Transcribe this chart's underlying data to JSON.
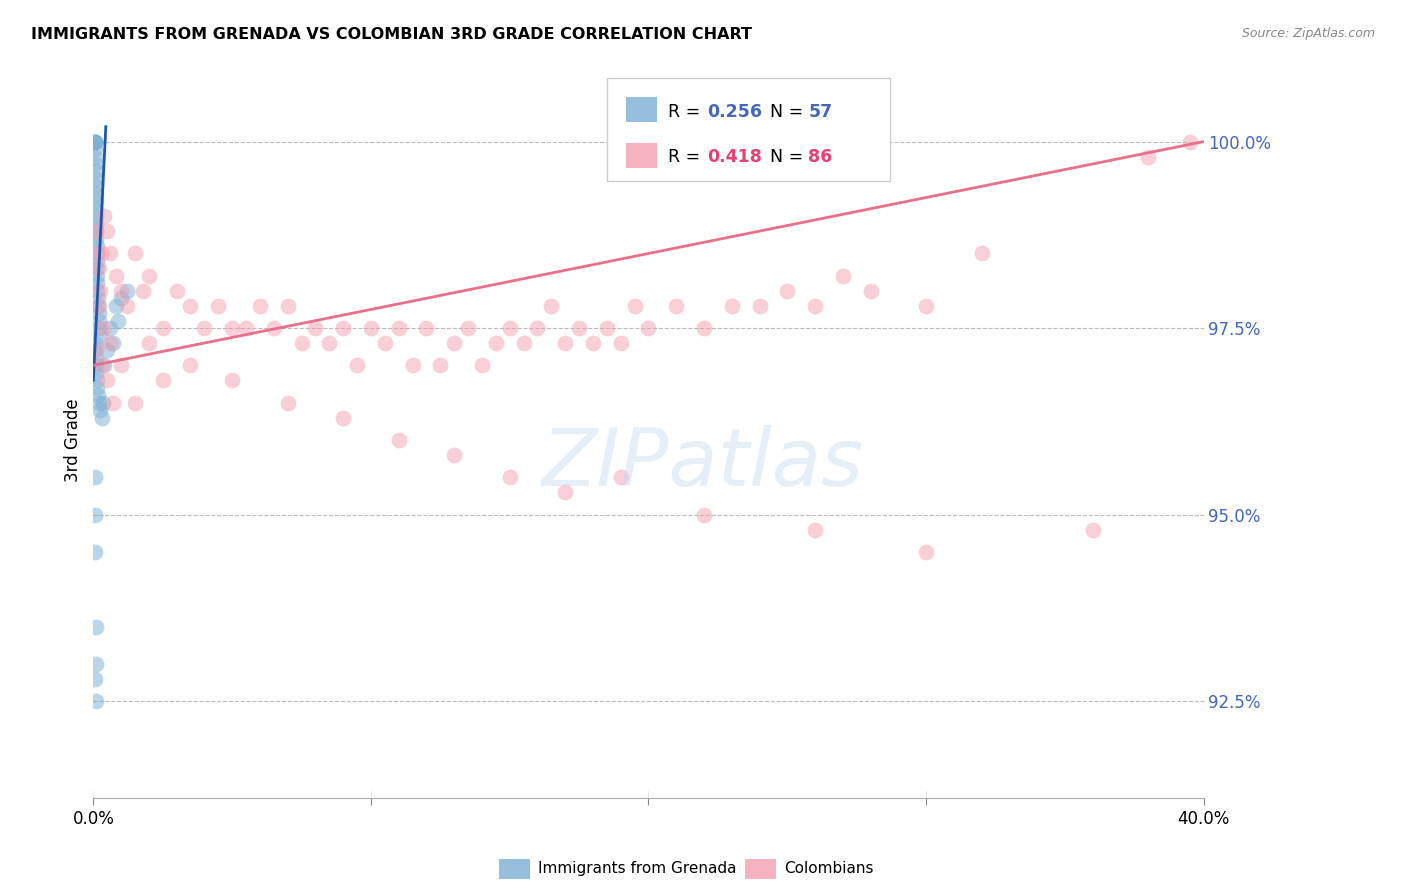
{
  "title": "IMMIGRANTS FROM GRENADA VS COLOMBIAN 3RD GRADE CORRELATION CHART",
  "source": "Source: ZipAtlas.com",
  "ylabel": "3rd Grade",
  "yticks": [
    92.5,
    95.0,
    97.5,
    100.0
  ],
  "ytick_labels": [
    "92.5%",
    "95.0%",
    "97.5%",
    "100.0%"
  ],
  "xmin": 0.0,
  "xmax": 40.0,
  "ymin": 91.2,
  "ymax": 100.8,
  "blue_R": 0.256,
  "blue_N": 57,
  "pink_R": 0.418,
  "pink_N": 86,
  "legend_label_blue": "Immigrants from Grenada",
  "legend_label_pink": "Colombians",
  "blue_color": "#7BAFD4",
  "pink_color": "#F4A0B0",
  "blue_line_color": "#2255AA",
  "pink_line_color": "#E8708A",
  "watermark": "ZIPatlas",
  "blue_scatter_x": [
    0.05,
    0.05,
    0.05,
    0.05,
    0.05,
    0.05,
    0.05,
    0.08,
    0.08,
    0.08,
    0.08,
    0.1,
    0.1,
    0.1,
    0.1,
    0.1,
    0.1,
    0.12,
    0.12,
    0.12,
    0.15,
    0.15,
    0.15,
    0.15,
    0.18,
    0.18,
    0.2,
    0.2,
    0.22,
    0.25,
    0.05,
    0.05,
    0.08,
    0.1,
    0.1,
    0.12,
    0.15,
    0.18,
    0.2,
    0.25,
    0.3,
    0.35,
    0.4,
    0.5,
    0.6,
    0.7,
    0.8,
    0.9,
    1.0,
    1.2,
    0.05,
    0.05,
    0.05,
    0.08,
    0.1,
    0.05,
    0.08
  ],
  "blue_scatter_y": [
    100.0,
    100.0,
    100.0,
    100.0,
    99.9,
    99.8,
    99.7,
    99.6,
    99.5,
    99.4,
    99.3,
    99.2,
    99.1,
    99.0,
    98.9,
    98.8,
    98.7,
    98.6,
    98.5,
    98.4,
    98.3,
    98.2,
    98.1,
    98.0,
    97.9,
    97.8,
    97.7,
    97.6,
    97.5,
    97.4,
    97.3,
    97.2,
    97.1,
    97.0,
    96.9,
    96.8,
    96.7,
    96.6,
    96.5,
    96.4,
    96.3,
    96.5,
    97.0,
    97.2,
    97.5,
    97.3,
    97.8,
    97.6,
    97.9,
    98.0,
    95.5,
    95.0,
    94.5,
    93.5,
    93.0,
    92.8,
    92.5
  ],
  "pink_scatter_x": [
    0.1,
    0.15,
    0.2,
    0.25,
    0.3,
    0.4,
    0.5,
    0.6,
    0.8,
    1.0,
    1.2,
    1.5,
    1.8,
    2.0,
    2.5,
    3.0,
    3.5,
    4.0,
    4.5,
    5.0,
    5.5,
    6.0,
    6.5,
    7.0,
    7.5,
    8.0,
    8.5,
    9.0,
    9.5,
    10.0,
    10.5,
    11.0,
    11.5,
    12.0,
    12.5,
    13.0,
    13.5,
    14.0,
    14.5,
    15.0,
    15.5,
    16.0,
    16.5,
    17.0,
    17.5,
    18.0,
    18.5,
    19.0,
    19.5,
    20.0,
    21.0,
    22.0,
    23.0,
    24.0,
    25.0,
    26.0,
    27.0,
    28.0,
    30.0,
    32.0,
    0.2,
    0.35,
    0.6,
    1.0,
    2.0,
    3.5,
    5.0,
    7.0,
    9.0,
    11.0,
    13.0,
    15.0,
    17.0,
    19.0,
    22.0,
    26.0,
    30.0,
    36.0,
    38.0,
    39.5,
    0.1,
    0.3,
    0.5,
    0.7,
    1.5,
    2.5
  ],
  "pink_scatter_y": [
    98.8,
    98.5,
    98.3,
    98.0,
    98.5,
    99.0,
    98.8,
    98.5,
    98.2,
    98.0,
    97.8,
    98.5,
    98.0,
    98.2,
    97.5,
    98.0,
    97.8,
    97.5,
    97.8,
    97.5,
    97.5,
    97.8,
    97.5,
    97.8,
    97.3,
    97.5,
    97.3,
    97.5,
    97.0,
    97.5,
    97.3,
    97.5,
    97.0,
    97.5,
    97.0,
    97.3,
    97.5,
    97.0,
    97.3,
    97.5,
    97.3,
    97.5,
    97.8,
    97.3,
    97.5,
    97.3,
    97.5,
    97.3,
    97.8,
    97.5,
    97.8,
    97.5,
    97.8,
    97.8,
    98.0,
    97.8,
    98.2,
    98.0,
    97.8,
    98.5,
    97.8,
    97.5,
    97.3,
    97.0,
    97.3,
    97.0,
    96.8,
    96.5,
    96.3,
    96.0,
    95.8,
    95.5,
    95.3,
    95.5,
    95.0,
    94.8,
    94.5,
    94.8,
    99.8,
    100.0,
    97.2,
    97.0,
    96.8,
    96.5,
    96.5,
    96.8
  ]
}
